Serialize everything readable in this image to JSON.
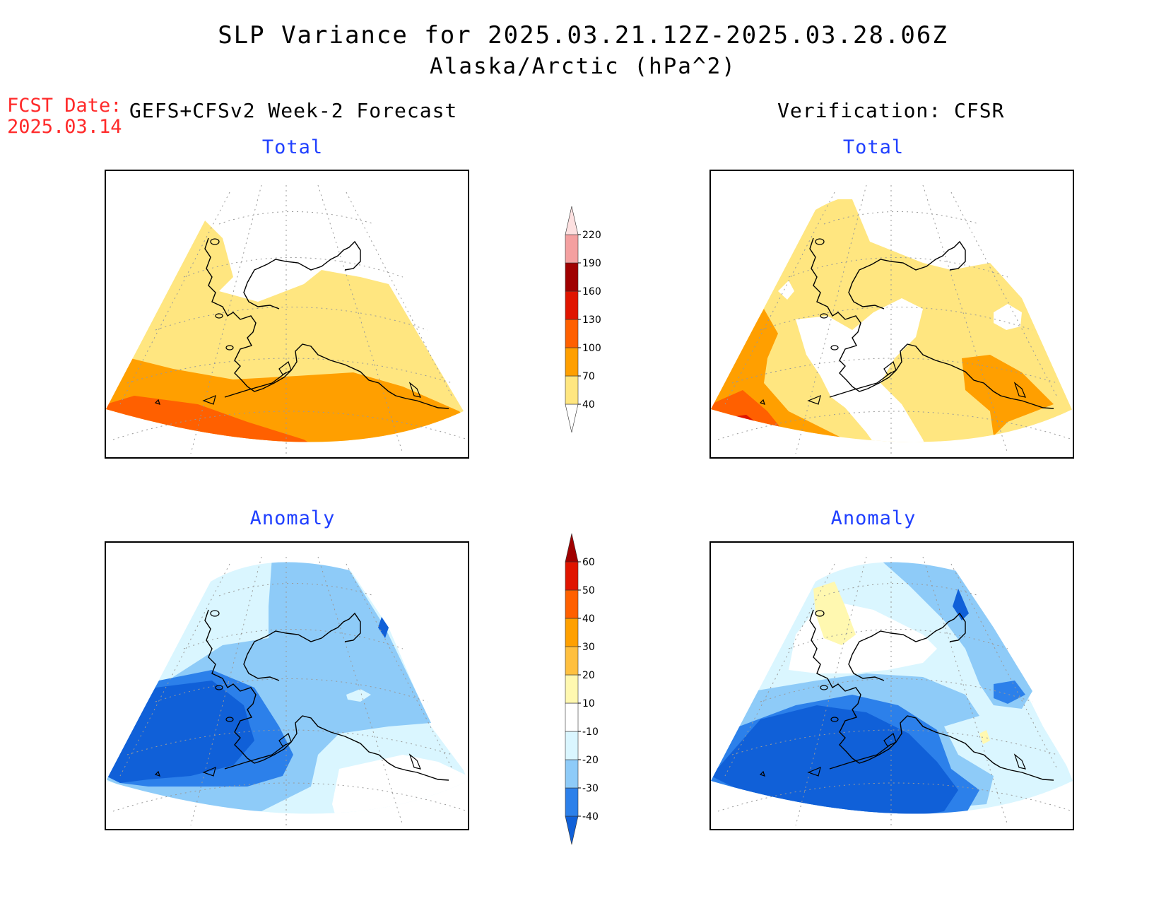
{
  "header": {
    "title": "SLP Variance for 2025.03.21.12Z-2025.03.28.06Z",
    "subtitle": "Alaska/Arctic (hPa^2)",
    "fcst_label_line1": "FCST Date:",
    "fcst_label_line2": "2025.03.14",
    "left_column": "GEFS+CFSv2 Week-2 Forecast",
    "right_column": "Verification: CFSR"
  },
  "panels": {
    "fcst_total_title": "Total",
    "verif_total_title": "Total",
    "fcst_anom_title": "Anomaly",
    "verif_anom_title": "Anomaly"
  },
  "colorbars": {
    "total": {
      "labels": [
        "40",
        "70",
        "100",
        "130",
        "160",
        "190",
        "220"
      ],
      "colors": [
        "#ffffff",
        "#ffe680",
        "#ff9f00",
        "#ff6000",
        "#e01500",
        "#a00000",
        "#f4a0a0",
        "#fde0e0"
      ]
    },
    "anomaly": {
      "labels": [
        "-40",
        "-30",
        "-20",
        "-10",
        "10",
        "20",
        "30",
        "40",
        "50",
        "60"
      ],
      "colors": [
        "#1060d8",
        "#2c80ea",
        "#8ecbf8",
        "#daf6ff",
        "#ffffff",
        "#fff8b0",
        "#ffc040",
        "#ffa000",
        "#ff6000",
        "#e01500",
        "#a00000"
      ]
    }
  },
  "palette": {
    "light_yellow": "#ffe680",
    "orange": "#ff9f00",
    "dark_orange": "#ff6000",
    "red": "#e01500",
    "pale_cyan": "#daf6ff",
    "light_blue": "#8ecbf8",
    "mid_blue": "#2c80ea",
    "dark_blue": "#1060d8",
    "pale_yellow": "#fff8b0"
  }
}
